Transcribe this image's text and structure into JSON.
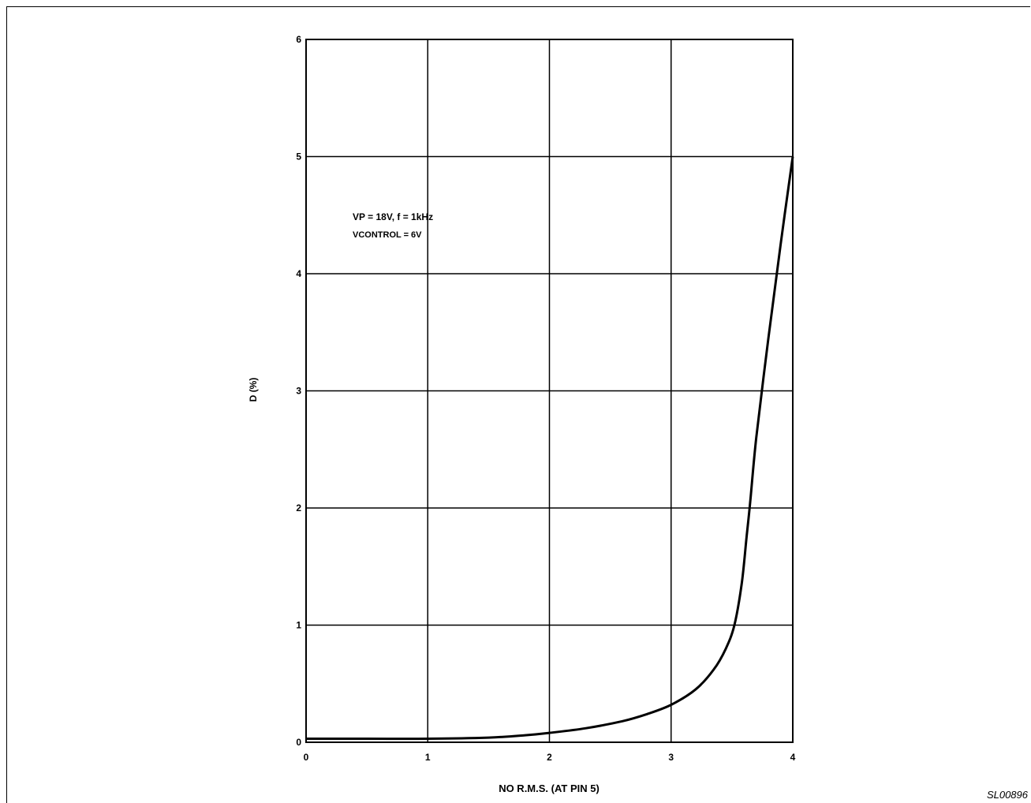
{
  "figure_code": "SL00896",
  "chart_data": {
    "type": "line",
    "xlabel": "NO R.M.S. (AT PIN 5)",
    "ylabel": "D (%)",
    "annotation_line1": "VP = 18V, f = 1kHz",
    "annotation_line2": "VCONTROL = 6V",
    "xlim": [
      0,
      4
    ],
    "ylim": [
      0,
      6
    ],
    "x_ticks": [
      "0",
      "1",
      "2",
      "3",
      "4"
    ],
    "y_ticks": [
      "0",
      "1",
      "2",
      "3",
      "4",
      "5",
      "6"
    ],
    "grid": true,
    "series": [
      {
        "x": [
          0,
          0.5,
          1.0,
          1.5,
          1.8,
          2.0,
          2.3,
          2.6,
          2.8,
          3.0,
          3.2,
          3.35,
          3.45,
          3.52,
          3.58,
          3.62,
          3.65,
          3.7,
          3.8,
          3.9,
          4.0
        ],
        "y": [
          0.03,
          0.03,
          0.03,
          0.04,
          0.06,
          0.08,
          0.12,
          0.18,
          0.24,
          0.32,
          0.45,
          0.62,
          0.8,
          1.0,
          1.35,
          1.75,
          2.05,
          2.6,
          3.45,
          4.25,
          5.0
        ]
      }
    ]
  }
}
